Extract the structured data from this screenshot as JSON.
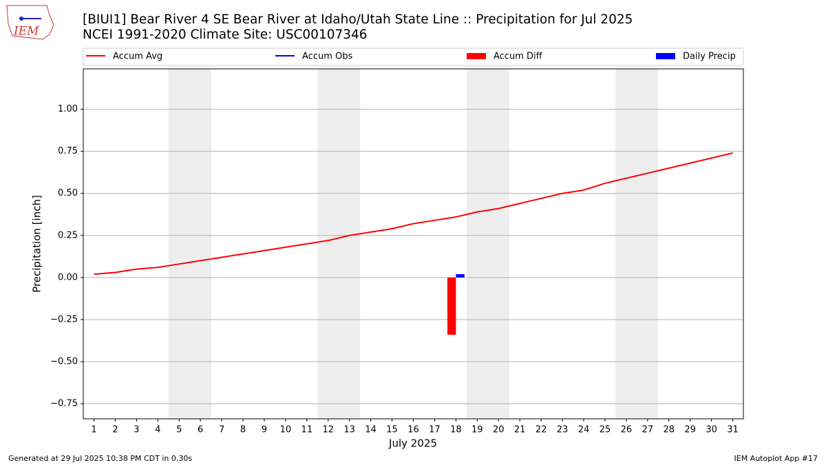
{
  "chart_data": {
    "type": "line",
    "title": "[BIUI1] Bear River 4 SE Bear River at Idaho/Utah State Line :: Precipitation for Jul 2025",
    "subtitle": "NCEI 1991-2020 Climate Site: USC00107346",
    "ylabel": "Precipitation [inch]",
    "xlabel": "July 2025",
    "footer_left": "Generated at 29 Jul 2025 10:38 PM CDT in 0.30s",
    "footer_right": "IEM Autoplot App #17",
    "logo": "IEM",
    "x": [
      1,
      2,
      3,
      4,
      5,
      6,
      7,
      8,
      9,
      10,
      11,
      12,
      13,
      14,
      15,
      16,
      17,
      18,
      19,
      20,
      21,
      22,
      23,
      24,
      25,
      26,
      27,
      28,
      29,
      30,
      31
    ],
    "xticks": [
      1,
      2,
      3,
      4,
      5,
      6,
      7,
      8,
      9,
      10,
      11,
      12,
      13,
      14,
      15,
      16,
      17,
      18,
      19,
      20,
      21,
      22,
      23,
      24,
      25,
      26,
      27,
      28,
      29,
      30,
      31
    ],
    "xlim": [
      0.5,
      31.5
    ],
    "ylim": [
      -0.84,
      1.24
    ],
    "yticks": [
      {
        "value": -0.75,
        "label": "−0.75"
      },
      {
        "value": -0.5,
        "label": "−0.50"
      },
      {
        "value": -0.25,
        "label": "−0.25"
      },
      {
        "value": 0,
        "label": "0.00"
      },
      {
        "value": 0.25,
        "label": "0.25"
      },
      {
        "value": 0.5,
        "label": "0.50"
      },
      {
        "value": 0.75,
        "label": "0.75"
      },
      {
        "value": 1,
        "label": "1.00"
      }
    ],
    "grid": true,
    "shaded_spans": [
      [
        4.5,
        6.5
      ],
      [
        11.5,
        13.5
      ],
      [
        18.5,
        20.5
      ],
      [
        25.5,
        27.5
      ]
    ],
    "series": [
      {
        "name": "Accum Avg",
        "color": "#ff0000",
        "kind": "line",
        "values": [
          0.02,
          0.03,
          0.05,
          0.06,
          0.08,
          0.1,
          0.12,
          0.14,
          0.16,
          0.18,
          0.2,
          0.22,
          0.25,
          0.27,
          0.29,
          0.32,
          0.34,
          0.36,
          0.39,
          0.41,
          0.44,
          0.47,
          0.5,
          0.52,
          0.56,
          0.59,
          0.62,
          0.65,
          0.68,
          0.71,
          0.74
        ]
      },
      {
        "name": "Accum Obs",
        "color": "#0000ff",
        "kind": "line",
        "values": [
          null,
          null,
          null,
          null,
          null,
          null,
          null,
          null,
          null,
          null,
          null,
          null,
          null,
          null,
          null,
          null,
          null,
          null,
          null,
          null,
          null,
          null,
          null,
          null,
          null,
          null,
          null,
          null,
          null,
          null,
          null
        ]
      },
      {
        "name": "Accum Diff",
        "color": "#ff0000",
        "kind": "bar",
        "offset": -1,
        "values": [
          null,
          null,
          null,
          null,
          null,
          null,
          null,
          null,
          null,
          null,
          null,
          null,
          null,
          null,
          null,
          null,
          null,
          -0.34,
          null,
          null,
          null,
          null,
          null,
          null,
          null,
          null,
          null,
          null,
          null,
          null,
          null
        ]
      },
      {
        "name": "Daily Precip",
        "color": "#0000ff",
        "kind": "bar",
        "offset": 0,
        "values": [
          null,
          null,
          null,
          null,
          null,
          null,
          null,
          null,
          null,
          null,
          null,
          null,
          null,
          null,
          null,
          null,
          null,
          0.02,
          null,
          null,
          null,
          null,
          null,
          null,
          null,
          null,
          null,
          null,
          null,
          null,
          null
        ]
      }
    ]
  }
}
